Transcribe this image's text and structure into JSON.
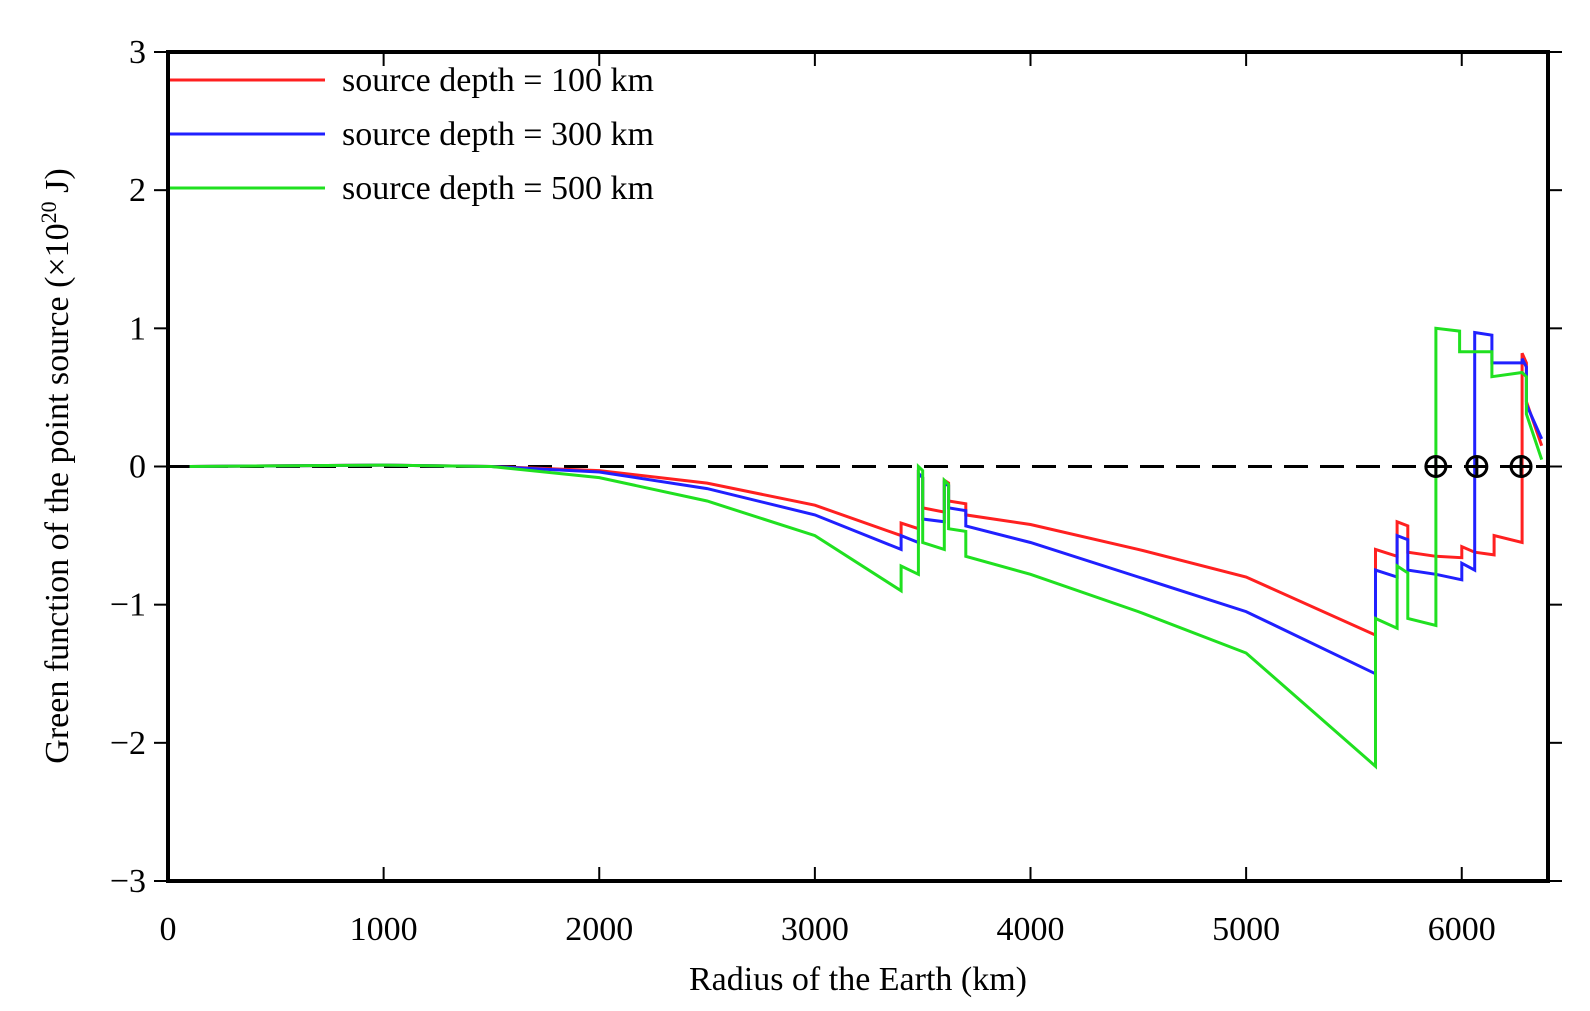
{
  "chart_data": {
    "type": "line",
    "xlabel": "Radius of the Earth (km)",
    "ylabel": [
      "Green function of the point source (×10",
      "20",
      " J)"
    ],
    "xlim": [
      0,
      6400
    ],
    "ylim": [
      -3,
      3
    ],
    "xticks": [
      0,
      1000,
      2000,
      3000,
      4000,
      5000,
      6000
    ],
    "yticks": [
      {
        "value": -3,
        "label": "−3"
      },
      {
        "value": -2,
        "label": "−2"
      },
      {
        "value": -1,
        "label": "−1"
      },
      0,
      1,
      2,
      3
    ],
    "hline": 0,
    "zero_crossings": [
      5880,
      6070,
      6275
    ],
    "legend": "upper left",
    "series": [
      {
        "name": "source depth = 100 km",
        "color": "#ff2020",
        "x": [
          100,
          1000,
          1500,
          2000,
          2500,
          3000,
          3400,
          3400,
          3480,
          3480,
          3500,
          3500,
          3600,
          3600,
          3620,
          3620,
          3700,
          3700,
          4000,
          4500,
          5000,
          5600,
          5600,
          5700,
          5700,
          5750,
          5750,
          5880,
          6000,
          6000,
          6060,
          6150,
          6150,
          6280,
          6280,
          6300,
          6300,
          6371
        ],
        "values": [
          0,
          0.01,
          0,
          -0.03,
          -0.12,
          -0.28,
          -0.5,
          -0.41,
          -0.45,
          -0.05,
          -0.08,
          -0.3,
          -0.33,
          -0.1,
          -0.12,
          -0.25,
          -0.27,
          -0.35,
          -0.42,
          -0.6,
          -0.8,
          -1.22,
          -0.6,
          -0.65,
          -0.4,
          -0.43,
          -0.62,
          -0.65,
          -0.66,
          -0.58,
          -0.62,
          -0.64,
          -0.5,
          -0.55,
          0.82,
          0.75,
          0.47,
          0.15
        ]
      },
      {
        "name": "source depth = 300 km",
        "color": "#2020ff",
        "x": [
          100,
          1000,
          1500,
          2000,
          2500,
          3000,
          3400,
          3400,
          3480,
          3480,
          3500,
          3500,
          3600,
          3600,
          3620,
          3620,
          3700,
          3700,
          4000,
          4500,
          5000,
          5600,
          5600,
          5700,
          5700,
          5750,
          5750,
          5880,
          6000,
          6000,
          6060,
          6060,
          6140,
          6140,
          6280,
          6280,
          6300,
          6300,
          6371
        ],
        "values": [
          0,
          0.01,
          0,
          -0.04,
          -0.16,
          -0.35,
          -0.6,
          -0.5,
          -0.55,
          -0.05,
          -0.08,
          -0.38,
          -0.4,
          -0.12,
          -0.14,
          -0.3,
          -0.32,
          -0.43,
          -0.55,
          -0.8,
          -1.05,
          -1.5,
          -0.75,
          -0.8,
          -0.5,
          -0.53,
          -0.75,
          -0.78,
          -0.82,
          -0.7,
          -0.75,
          0.97,
          0.95,
          0.75,
          0.75,
          0.78,
          0.72,
          0.45,
          0.2
        ]
      },
      {
        "name": "source depth = 500 km",
        "color": "#20e020",
        "x": [
          100,
          1000,
          1500,
          2000,
          2500,
          3000,
          3400,
          3400,
          3480,
          3480,
          3500,
          3500,
          3600,
          3600,
          3620,
          3620,
          3700,
          3700,
          4000,
          4500,
          5000,
          5600,
          5600,
          5700,
          5700,
          5750,
          5750,
          5880,
          5880,
          5990,
          5990,
          6140,
          6140,
          6280,
          6300,
          6300,
          6371
        ],
        "values": [
          0,
          0.01,
          0,
          -0.08,
          -0.25,
          -0.5,
          -0.9,
          -0.72,
          -0.78,
          0,
          -0.03,
          -0.55,
          -0.6,
          -0.1,
          -0.13,
          -0.45,
          -0.47,
          -0.65,
          -0.78,
          -1.05,
          -1.35,
          -2.17,
          -1.1,
          -1.17,
          -0.72,
          -0.77,
          -1.1,
          -1.15,
          1.0,
          0.98,
          0.83,
          0.83,
          0.65,
          0.68,
          0.65,
          0.38,
          0.05
        ]
      }
    ]
  }
}
